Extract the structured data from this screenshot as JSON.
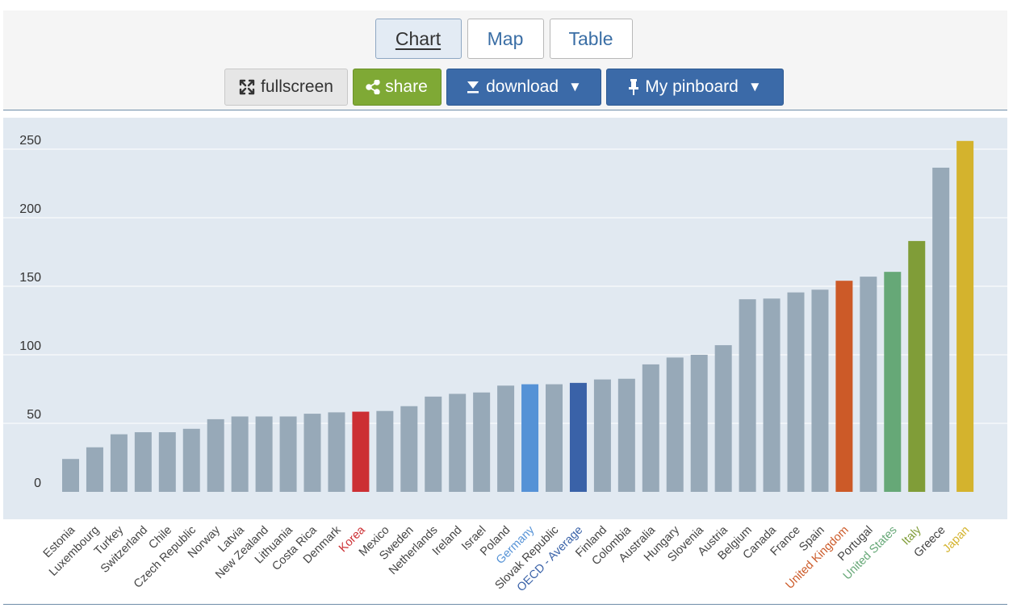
{
  "tabs": [
    {
      "label": "Chart",
      "active": true
    },
    {
      "label": "Map",
      "active": false
    },
    {
      "label": "Table",
      "active": false
    }
  ],
  "toolbar": {
    "fullscreen": {
      "label": "fullscreen",
      "icon": "expand-arrows-icon"
    },
    "share": {
      "label": "share",
      "icon": "share-icon"
    },
    "download": {
      "label": "download",
      "icon": "download-icon",
      "caret": "▼"
    },
    "pinboard": {
      "label": "My pinboard",
      "icon": "pin-icon",
      "caret": "▼"
    }
  },
  "colors": {
    "plot_background": "#e1e9f1",
    "default_bar": "#97a9b8",
    "gridline": "#ffffff",
    "tick_text": "#333333",
    "default_label": "#444444"
  },
  "chart_data": {
    "type": "bar",
    "categories": [
      "Estonia",
      "Luxembourg",
      "Turkey",
      "Switzerland",
      "Chile",
      "Czech Republic",
      "Norway",
      "Latvia",
      "New Zealand",
      "Lithuania",
      "Costa Rica",
      "Denmark",
      "Korea",
      "Mexico",
      "Sweden",
      "Netherlands",
      "Ireland",
      "Israel",
      "Poland",
      "Germany",
      "Slovak Republic",
      "OECD - Average",
      "Finland",
      "Colombia",
      "Australia",
      "Hungary",
      "Slovenia",
      "Austria",
      "Belgium",
      "Canada",
      "France",
      "Spain",
      "United Kingdom",
      "Portugal",
      "United States",
      "Italy",
      "Greece",
      "Japan"
    ],
    "values": [
      24,
      32.5,
      42,
      43.5,
      43.5,
      46,
      53,
      55,
      55,
      55,
      57,
      58,
      58.5,
      59,
      62.5,
      69.5,
      71.5,
      72.5,
      77.5,
      78.5,
      78.5,
      79.5,
      82,
      82.5,
      93,
      98,
      100,
      107,
      140.5,
      141,
      145.5,
      147.5,
      154,
      157,
      160.5,
      183,
      236.5,
      256
    ],
    "highlights": {
      "Korea": "#cc2f33",
      "Germany": "#5592d6",
      "OECD - Average": "#3a62a8",
      "United Kingdom": "#cc5a28",
      "United States": "#66a877",
      "Italy": "#809d38",
      "Japan": "#d4b32d"
    },
    "title": "",
    "xlabel": "",
    "ylabel": "",
    "ylim": [
      0,
      260
    ],
    "yticks": [
      0,
      50,
      100,
      150,
      200,
      250
    ],
    "grid": true,
    "legend": "none"
  }
}
